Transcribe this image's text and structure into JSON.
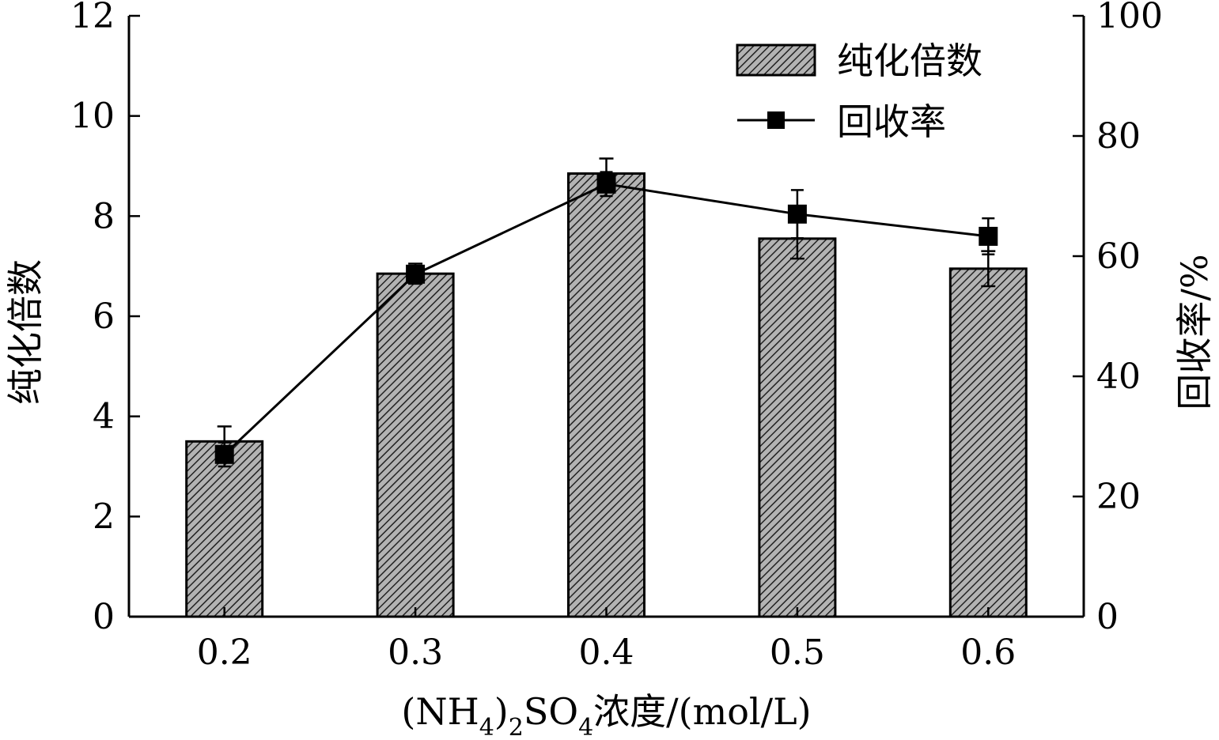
{
  "chart_data": {
    "type": "bar",
    "categories": [
      "0.2",
      "0.3",
      "0.4",
      "0.5",
      "0.6"
    ],
    "series": [
      {
        "name": "纯化倍数",
        "type": "bar",
        "axis": "left",
        "values": [
          3.5,
          6.85,
          8.85,
          7.55,
          6.95
        ],
        "error": [
          0.3,
          0.2,
          0.3,
          0.4,
          0.35
        ]
      },
      {
        "name": "回收率",
        "type": "line",
        "axis": "right",
        "values": [
          27,
          57,
          72,
          67,
          63.3
        ],
        "error": [
          2,
          1,
          2,
          4,
          3
        ]
      }
    ],
    "xlabel": {
      "parts": [
        {
          "t": "(NH"
        },
        {
          "t": "4",
          "sub": true
        },
        {
          "t": ")"
        },
        {
          "t": "2",
          "sub": true
        },
        {
          "t": "SO"
        },
        {
          "t": "4",
          "sub": true
        },
        {
          "t": "浓度/(mol/L)"
        }
      ]
    },
    "ylabel_left": "纯化倍数",
    "ylabel_right": "回收率/%",
    "ylim_left": [
      0,
      12
    ],
    "ylim_right": [
      0,
      100
    ],
    "yticks_left": [
      "0",
      "2",
      "4",
      "6",
      "8",
      "10",
      "12"
    ],
    "yticks_right": [
      "0",
      "20",
      "40",
      "60",
      "80",
      "100"
    ],
    "legend": {
      "placement": "top-right",
      "items": [
        "纯化倍数",
        "回收率"
      ]
    },
    "grid": false,
    "colors": {
      "bar_fill": "#b3b3b3",
      "hatch": "#222222",
      "line": "#000000",
      "marker": "#000000"
    }
  }
}
